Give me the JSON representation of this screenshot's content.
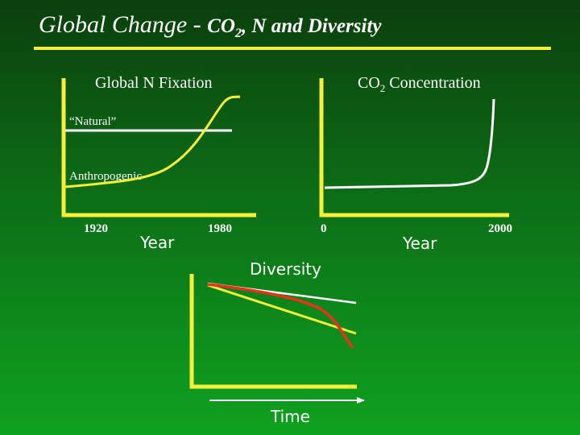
{
  "slide": {
    "title_main": "Global Change - ",
    "title_co": "CO",
    "title_sub": "2",
    "title_rest": ", N and Diversity"
  },
  "panel_n_fixation": {
    "title": "Global N Fixation",
    "series_natural": "“Natural”",
    "series_anthropogenic": "Anthropogenic",
    "x_tick_start": "1920",
    "x_tick_end": "1980",
    "x_label": "Year"
  },
  "panel_co2": {
    "title_prefix": "CO",
    "title_sub": "2",
    "title_suffix": " Concentration",
    "x_tick_start": "0",
    "x_tick_end": "2000",
    "x_label": "Year"
  },
  "panel_diversity": {
    "title": "Diversity",
    "x_label": "Time"
  },
  "colors": {
    "axis": "#f5ee3a",
    "natural_line": "#ffffff",
    "anthropogenic_line": "#f5ee3a",
    "co2_line": "#ffffff",
    "diversity_white": "#ffffff",
    "diversity_yellow": "#f5ee3a",
    "diversity_red": "#e8321a"
  }
}
